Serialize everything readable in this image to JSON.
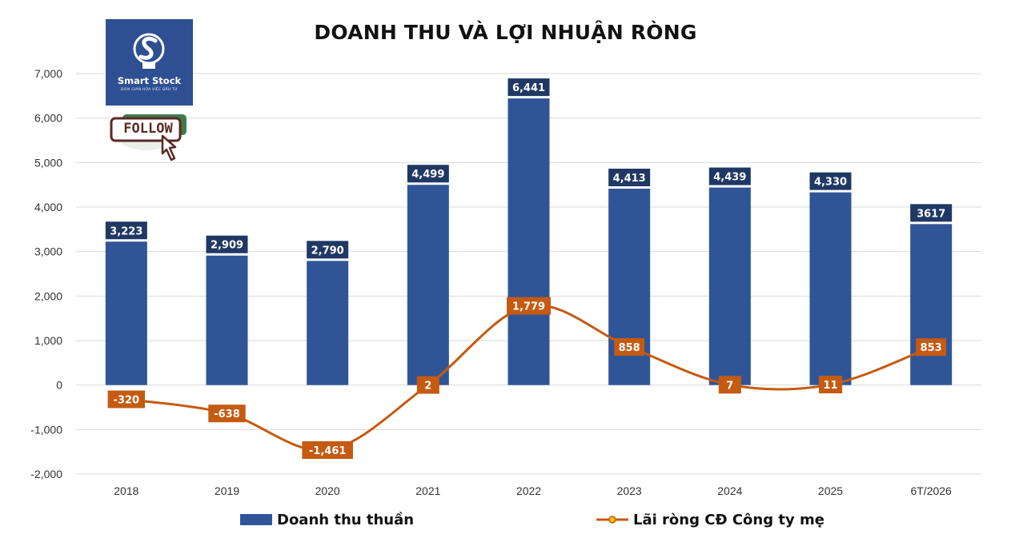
{
  "chart_data": {
    "type": "bar",
    "title": "DOANH THU VÀ LỢI NHUẬN RÒNG",
    "categories": [
      "2018",
      "2019",
      "2020",
      "2021",
      "2022",
      "2023",
      "2024",
      "2025",
      "6T/2026"
    ],
    "ylim": [
      -2000,
      7000
    ],
    "yticks": [
      -2000,
      -1000,
      0,
      1000,
      2000,
      3000,
      4000,
      5000,
      6000,
      7000
    ],
    "ytick_labels": [
      "-2,000",
      "-1,000",
      "0",
      "1,000",
      "2,000",
      "3,000",
      "4,000",
      "5,000",
      "6,000",
      "7,000"
    ],
    "grid": true,
    "legend_position": "bottom",
    "series": [
      {
        "name": "Doanh thu thuần",
        "type": "bar",
        "color": "#2f5597",
        "label_color": "#1f3864",
        "values": [
          3223,
          2909,
          2790,
          4499,
          6441,
          4413,
          4439,
          4330,
          3617
        ],
        "labels": [
          "3,223",
          "2,909",
          "2,790",
          "4,499",
          "6,441",
          "4,413",
          "4,439",
          "4,330",
          "3617"
        ]
      },
      {
        "name": "Lãi ròng CĐ Công ty mẹ",
        "type": "line",
        "smooth": true,
        "color": "#c55a11",
        "marker_color": "#ffc000",
        "values": [
          -320,
          -638,
          -1461,
          2,
          1779,
          858,
          7,
          11,
          853
        ],
        "labels": [
          "-320",
          "-638",
          "-1,461",
          "2",
          "1,779",
          "858",
          "7",
          "11",
          "853"
        ]
      }
    ]
  },
  "logo": {
    "name": "Smart Stock",
    "tagline": "ĐƠN GIẢN HÓA VIỆC ĐẦU TƯ"
  },
  "follow": {
    "label": "FOLLOW"
  }
}
